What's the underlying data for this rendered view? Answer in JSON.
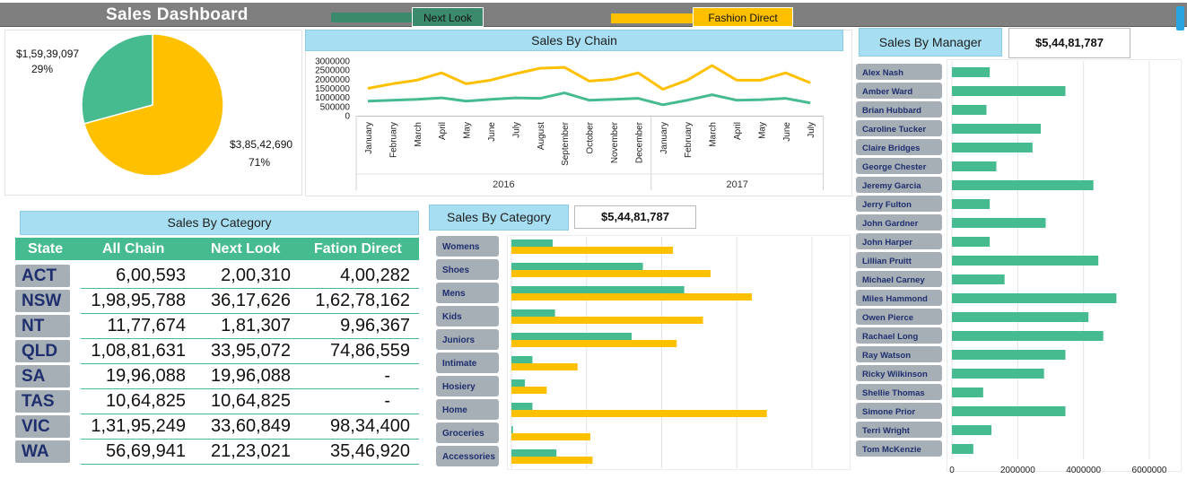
{
  "title": "Sales Dashboard",
  "legend": [
    {
      "name": "Next Look",
      "color": "#45bb8f"
    },
    {
      "name": "Fashion Direct",
      "color": "#ffc000"
    }
  ],
  "colors": {
    "next_look": "#45bb8f",
    "fashion_direct": "#ffc000",
    "header_band": "#a7def1",
    "slicer": "#a6aeb6"
  },
  "pie": {
    "slices": [
      {
        "label": "$1,59,39,097",
        "percent": "29%",
        "value": 15939097,
        "color": "#45bb8f"
      },
      {
        "label": "$3,85,42,690",
        "percent": "71%",
        "value": 38542690,
        "color": "#ffc000"
      }
    ]
  },
  "chain": {
    "title": "Sales By Chain",
    "ylim": [
      0,
      3000000
    ],
    "yticks": [
      "3000000",
      "2500000",
      "2000000",
      "1500000",
      "1000000",
      "500000",
      "0"
    ],
    "months": [
      "January",
      "February",
      "March",
      "April",
      "May",
      "June",
      "July",
      "August",
      "September",
      "October",
      "November",
      "December",
      "January",
      "February",
      "March",
      "April",
      "May",
      "June",
      "July"
    ],
    "years": [
      {
        "label": "2016"
      },
      {
        "label": "2017"
      }
    ]
  },
  "category_table": {
    "title": "Sales By Category",
    "headers": [
      "State",
      "All Chain",
      "Next Look",
      "Fation Direct"
    ],
    "rows": [
      {
        "state": "ACT",
        "all": "6,00,593",
        "next": "2,00,310",
        "fashion": "4,00,282"
      },
      {
        "state": "NSW",
        "all": "1,98,95,788",
        "next": "36,17,626",
        "fashion": "1,62,78,162"
      },
      {
        "state": "NT",
        "all": "11,77,674",
        "next": "1,81,307",
        "fashion": "9,96,367"
      },
      {
        "state": "QLD",
        "all": "1,08,81,631",
        "next": "33,95,072",
        "fashion": "74,86,559"
      },
      {
        "state": "SA",
        "all": "19,96,088",
        "next": "19,96,088",
        "fashion": "-"
      },
      {
        "state": "TAS",
        "all": "10,64,825",
        "next": "10,64,825",
        "fashion": "-"
      },
      {
        "state": "VIC",
        "all": "1,31,95,249",
        "next": "33,60,849",
        "fashion": "98,34,400"
      },
      {
        "state": "WA",
        "all": "56,69,941",
        "next": "21,23,021",
        "fashion": "35,46,920"
      }
    ]
  },
  "category_chart": {
    "title": "Sales By Category",
    "total": "$5,44,81,787",
    "xlim": [
      0,
      4000000
    ]
  },
  "manager_chart": {
    "title": "Sales By Manager",
    "total": "$5,44,81,787",
    "xticks": [
      "0",
      "2000000",
      "4000000",
      "6000000"
    ],
    "xlim": [
      0,
      6000000
    ]
  },
  "chart_data": [
    {
      "type": "pie",
      "labels": [
        "$1,59,39,097",
        "$3,85,42,690"
      ],
      "values": [
        15939097,
        38542690
      ],
      "percents": [
        "29%",
        "71%"
      ]
    },
    {
      "type": "line",
      "title": "Sales By Chain",
      "x": [
        "January",
        "February",
        "March",
        "April",
        "May",
        "June",
        "July",
        "August",
        "September",
        "October",
        "November",
        "December",
        "January",
        "February",
        "March",
        "April",
        "May",
        "June",
        "July"
      ],
      "ylim": [
        0,
        3000000
      ],
      "series": [
        {
          "name": "Next Look",
          "values": [
            800000,
            850000,
            900000,
            980000,
            800000,
            900000,
            980000,
            950000,
            1250000,
            850000,
            900000,
            950000,
            600000,
            850000,
            1150000,
            850000,
            880000,
            950000,
            700000
          ]
        },
        {
          "name": "Fashion Direct",
          "values": [
            1500000,
            1750000,
            1950000,
            2350000,
            1750000,
            1950000,
            2300000,
            2600000,
            2650000,
            1900000,
            2000000,
            2350000,
            1450000,
            1950000,
            2750000,
            1950000,
            1950000,
            2350000,
            1800000
          ]
        }
      ]
    },
    {
      "type": "bar",
      "title": "Sales By Category",
      "categories": [
        "Womens",
        "Shoes",
        "Mens",
        "Kids",
        "Juniors",
        "Intimate",
        "Hosiery",
        "Home",
        "Groceries",
        "Accessories"
      ],
      "xlim": [
        0,
        4000000
      ],
      "series": [
        {
          "name": "Next Look",
          "values": [
            550000,
            1750000,
            2300000,
            580000,
            1600000,
            280000,
            180000,
            280000,
            20000,
            600000
          ]
        },
        {
          "name": "Fashion Direct",
          "values": [
            2150000,
            2650000,
            3200000,
            2550000,
            2200000,
            880000,
            470000,
            3400000,
            1050000,
            1080000
          ]
        }
      ]
    },
    {
      "type": "bar",
      "title": "Sales By Manager",
      "categories": [
        "Alex Nash",
        "Amber Ward",
        "Brian Hubbard",
        "Caroline Tucker",
        "Claire Bridges",
        "George Chester",
        "Jeremy Garcia",
        "Jerry Fulton",
        "John Gardner",
        "John Harper",
        "Lillian Pruitt",
        "Michael Carney",
        "Miles Hammond",
        "Owen Pierce",
        "Rachael Long",
        "Ray Watson",
        "Ricky Wilkinson",
        "Shellie Thomas",
        "Simone Prior",
        "Terri Wright",
        "Tom McKenzie"
      ],
      "xlim": [
        0,
        6000000
      ],
      "xticks": [
        "0",
        "2000000",
        "4000000",
        "6000000"
      ],
      "values": [
        1150000,
        3450000,
        1050000,
        2700000,
        2450000,
        1350000,
        4300000,
        1150000,
        2850000,
        1150000,
        4450000,
        1600000,
        5000000,
        4150000,
        4600000,
        3450000,
        2800000,
        950000,
        3450000,
        1200000,
        650000
      ]
    }
  ]
}
